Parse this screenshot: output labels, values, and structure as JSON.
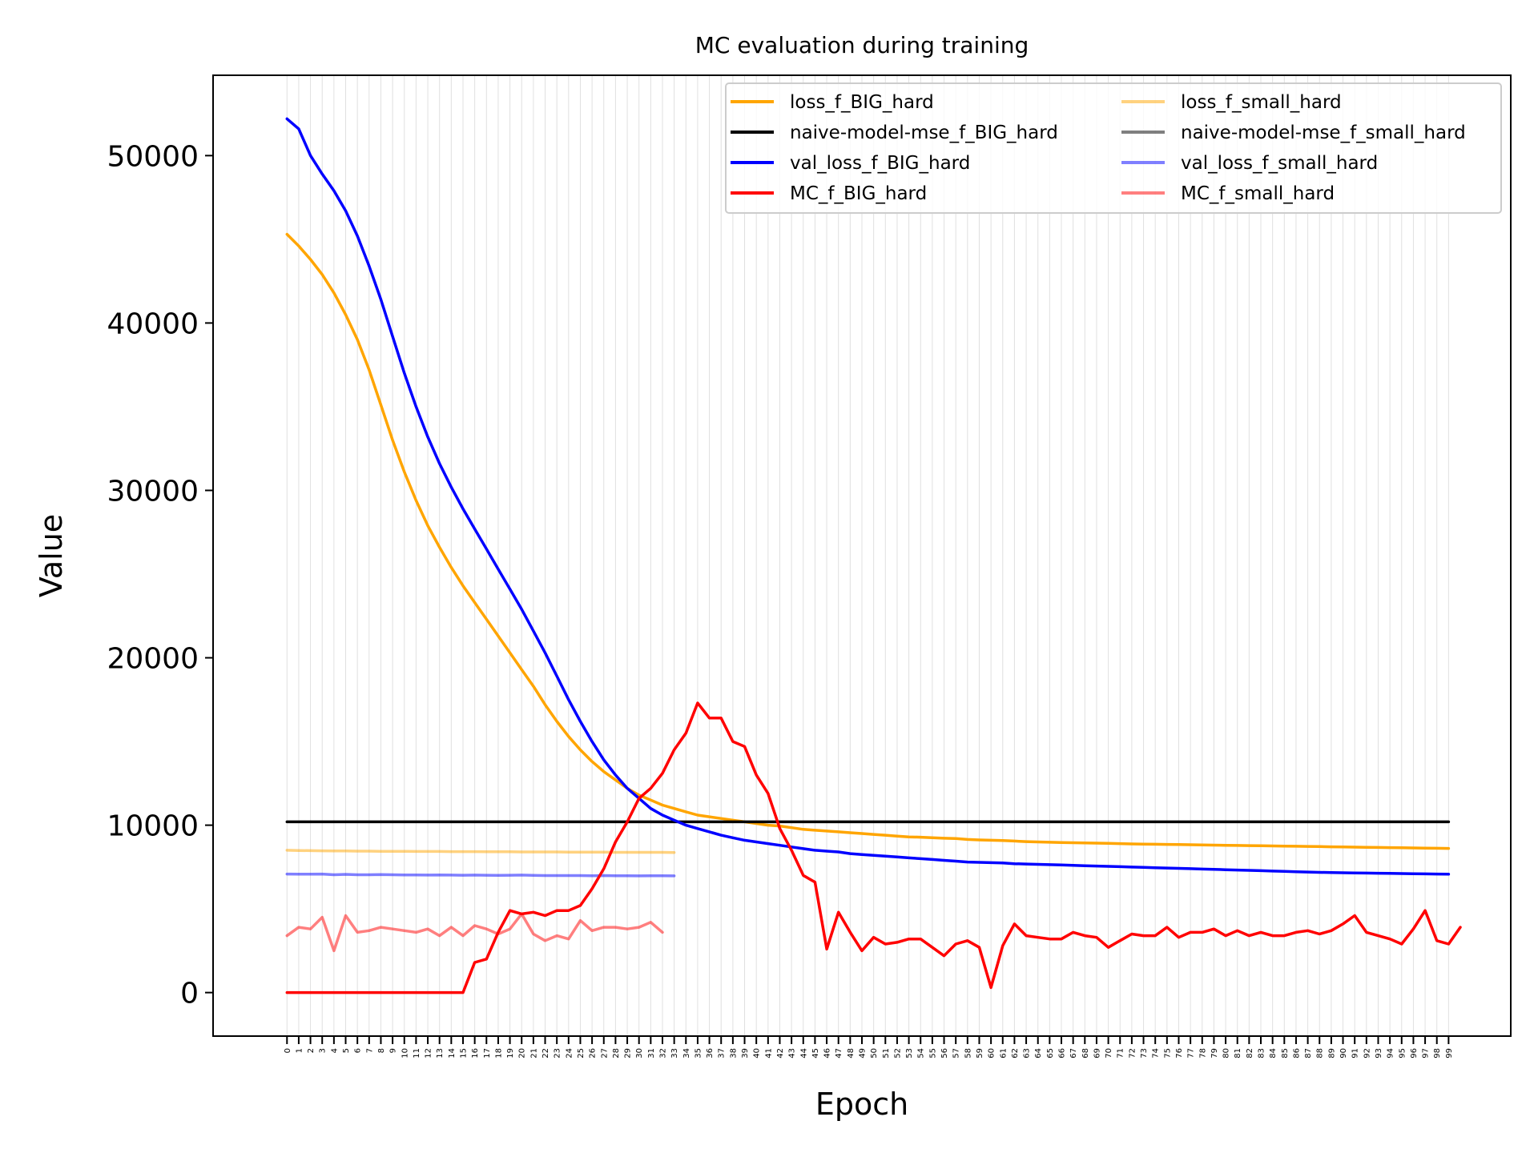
{
  "chart_data": {
    "type": "line",
    "title": "MC evaluation during training",
    "xlabel": "Epoch",
    "ylabel": "Value",
    "xlim": [
      -6.3,
      104.3
    ],
    "ylim": [
      -2600,
      54800
    ],
    "yticks": [
      0,
      10000,
      20000,
      30000,
      40000,
      50000
    ],
    "xticks_count": 100,
    "grid": "vertical, faint",
    "legend_placement": "top-right",
    "legend_columns": 2,
    "series": [
      {
        "name": "loss_f_BIG_hard",
        "color": "#ffa500",
        "opacity": 1,
        "x_start": 0,
        "values": [
          45300,
          44600,
          43800,
          42900,
          41800,
          40500,
          39000,
          37200,
          35100,
          33000,
          31100,
          29400,
          27900,
          26600,
          25400,
          24300,
          23300,
          22300,
          21300,
          20300,
          19300,
          18300,
          17200,
          16200,
          15300,
          14500,
          13800,
          13200,
          12700,
          12200,
          11800,
          11500,
          11200,
          11000,
          10800,
          10600,
          10500,
          10400,
          10300,
          10200,
          10100,
          10000,
          9950,
          9850,
          9750,
          9700,
          9650,
          9600,
          9550,
          9500,
          9450,
          9400,
          9350,
          9300,
          9280,
          9250,
          9220,
          9200,
          9150,
          9120,
          9100,
          9080,
          9050,
          9020,
          9000,
          8980,
          8960,
          8950,
          8940,
          8930,
          8920,
          8900,
          8880,
          8870,
          8860,
          8850,
          8840,
          8830,
          8820,
          8810,
          8800,
          8790,
          8780,
          8770,
          8760,
          8750,
          8740,
          8730,
          8720,
          8710,
          8700,
          8690,
          8680,
          8670,
          8660,
          8650,
          8640,
          8630,
          8620,
          8610
        ]
      },
      {
        "name": "naive-model-mse_f_BIG_hard",
        "color": "#000000",
        "opacity": 1,
        "x_start": 0,
        "values": [
          10200,
          10200,
          10200,
          10200,
          10200,
          10200,
          10200,
          10200,
          10200,
          10200,
          10200,
          10200,
          10200,
          10200,
          10200,
          10200,
          10200,
          10200,
          10200,
          10200,
          10200,
          10200,
          10200,
          10200,
          10200,
          10200,
          10200,
          10200,
          10200,
          10200,
          10200,
          10200,
          10200,
          10200,
          10200,
          10200,
          10200,
          10200,
          10200,
          10200,
          10200,
          10200,
          10200,
          10200,
          10200,
          10200,
          10200,
          10200,
          10200,
          10200,
          10200,
          10200,
          10200,
          10200,
          10200,
          10200,
          10200,
          10200,
          10200,
          10200,
          10200,
          10200,
          10200,
          10200,
          10200,
          10200,
          10200,
          10200,
          10200,
          10200,
          10200,
          10200,
          10200,
          10200,
          10200,
          10200,
          10200,
          10200,
          10200,
          10200,
          10200,
          10200,
          10200,
          10200,
          10200,
          10200,
          10200,
          10200,
          10200,
          10200,
          10200,
          10200,
          10200,
          10200,
          10200,
          10200,
          10200,
          10200,
          10200,
          10200
        ]
      },
      {
        "name": "val_loss_f_BIG_hard",
        "color": "#0000ff",
        "opacity": 1,
        "x_start": 0,
        "values": [
          52200,
          51600,
          50000,
          48900,
          47900,
          46700,
          45200,
          43400,
          41400,
          39200,
          37000,
          35000,
          33200,
          31600,
          30200,
          28900,
          27700,
          26500,
          25300,
          24100,
          22900,
          21600,
          20300,
          18900,
          17500,
          16200,
          15000,
          13900,
          13000,
          12200,
          11600,
          11000,
          10600,
          10300,
          10000,
          9800,
          9600,
          9400,
          9250,
          9100,
          9000,
          8900,
          8800,
          8700,
          8600,
          8500,
          8450,
          8400,
          8300,
          8250,
          8200,
          8150,
          8100,
          8050,
          8000,
          7950,
          7900,
          7850,
          7800,
          7780,
          7760,
          7740,
          7700,
          7680,
          7660,
          7640,
          7620,
          7600,
          7580,
          7560,
          7540,
          7520,
          7500,
          7480,
          7460,
          7440,
          7420,
          7400,
          7380,
          7360,
          7340,
          7320,
          7300,
          7280,
          7260,
          7240,
          7220,
          7200,
          7180,
          7170,
          7160,
          7150,
          7140,
          7130,
          7120,
          7110,
          7100,
          7090,
          7080,
          7070
        ]
      },
      {
        "name": "MC_f_BIG_hard",
        "color": "#ff0000",
        "opacity": 1,
        "x_start": 0,
        "values": [
          0,
          0,
          0,
          0,
          0,
          0,
          0,
          0,
          0,
          0,
          0,
          0,
          0,
          0,
          0,
          0,
          1800,
          2000,
          3600,
          4900,
          4700,
          4800,
          4600,
          4900,
          4900,
          5200,
          6200,
          7400,
          9000,
          10200,
          11600,
          12200,
          13100,
          14500,
          15500,
          17300,
          16400,
          16400,
          15000,
          14700,
          13000,
          11900,
          9800,
          8500,
          7000,
          6600,
          2600,
          4800,
          3600,
          2500,
          3300,
          2900,
          3000,
          3200,
          3200,
          2700,
          2200,
          2900,
          3100,
          2700,
          300,
          2800,
          4100,
          3400,
          3300,
          3200,
          3200,
          3600,
          3400,
          3300,
          2700,
          3100,
          3500,
          3400,
          3400,
          3900,
          3300,
          3600,
          3600,
          3800,
          3400,
          3700,
          3400,
          3600,
          3400,
          3400,
          3600,
          3700,
          3500,
          3700,
          4100,
          4600,
          3600,
          3400,
          3200,
          2900,
          3800,
          4900,
          3100,
          2900,
          3900
        ]
      },
      {
        "name": "loss_f_small_hard",
        "color": "#ffa500",
        "opacity": 0.5,
        "x_start": 0,
        "values": [
          8500,
          8490,
          8480,
          8470,
          8460,
          8460,
          8450,
          8450,
          8440,
          8440,
          8440,
          8430,
          8430,
          8430,
          8420,
          8420,
          8420,
          8410,
          8410,
          8410,
          8400,
          8400,
          8400,
          8400,
          8390,
          8390,
          8390,
          8390,
          8380,
          8380,
          8380,
          8380,
          8380,
          8370
        ]
      },
      {
        "name": "naive-model-mse_f_small_hard",
        "color": "#000000",
        "opacity": 0.5,
        "x_start": 0,
        "values": []
      },
      {
        "name": "val_loss_f_small_hard",
        "color": "#0000ff",
        "opacity": 0.5,
        "x_start": 0,
        "values": [
          7080,
          7070,
          7070,
          7080,
          7040,
          7060,
          7040,
          7040,
          7050,
          7040,
          7030,
          7030,
          7020,
          7030,
          7020,
          7010,
          7020,
          7010,
          7000,
          7010,
          7020,
          7000,
          6990,
          6990,
          6990,
          6990,
          6980,
          6990,
          6980,
          6980,
          6970,
          6980,
          6980,
          6970
        ]
      },
      {
        "name": "MC_f_small_hard",
        "color": "#ff0000",
        "opacity": 0.5,
        "x_start": 0,
        "values": [
          3400,
          3900,
          3800,
          4500,
          2500,
          4600,
          3600,
          3700,
          3900,
          3800,
          3700,
          3600,
          3800,
          3400,
          3900,
          3400,
          4000,
          3800,
          3500,
          3800,
          4700,
          3500,
          3100,
          3400,
          3200,
          4300,
          3700,
          3900,
          3900,
          3800,
          3900,
          4200,
          3600
        ]
      }
    ]
  }
}
